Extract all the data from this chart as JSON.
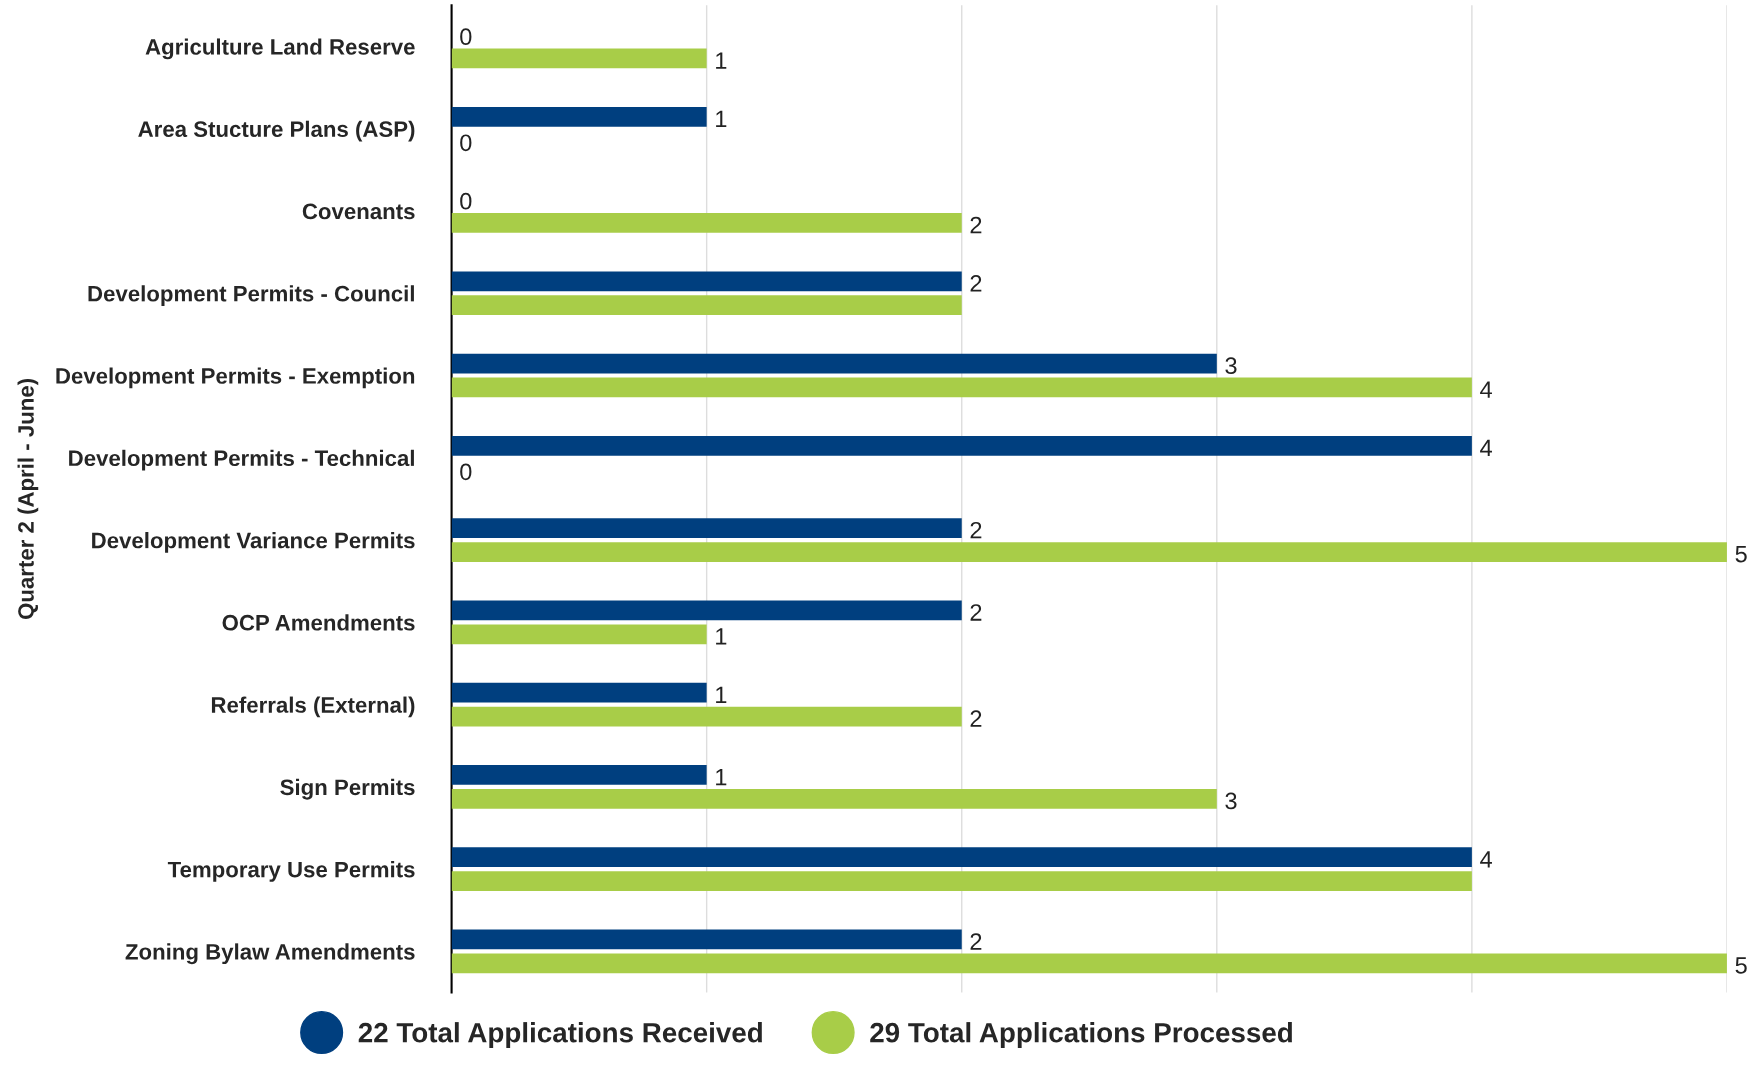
{
  "chart_data": {
    "type": "bar",
    "orientation": "horizontal",
    "ylabel": "Quarter 2 (April - June)",
    "categories": [
      "Agriculture Land Reserve",
      "Area Stucture Plans (ASP)",
      "Covenants",
      "Development Permits - Council",
      "Development Permits - Exemption",
      "Development Permits - Technical",
      "Development Variance Permits",
      "OCP Amendments",
      "Referrals (External)",
      "Sign Permits",
      "Temporary Use Permits",
      "Zoning Bylaw Amendments"
    ],
    "series": [
      {
        "name": "22 Total Applications Received",
        "color": "#003f7f",
        "values": [
          0,
          1,
          0,
          2,
          3,
          4,
          2,
          2,
          1,
          1,
          4,
          2
        ],
        "value_labels": [
          "0",
          "1",
          "0",
          "2",
          "3",
          "4",
          "2",
          "2",
          "1",
          "1",
          "4",
          "2"
        ]
      },
      {
        "name": "29 Total Applications Processed",
        "color": "#a8cd48",
        "values": [
          1,
          0,
          2,
          2,
          4,
          0,
          5,
          1,
          2,
          3,
          4,
          5
        ],
        "value_labels": [
          "1",
          "0",
          "2",
          null,
          "4",
          "0",
          "5",
          "1",
          "2",
          "3",
          null,
          "5"
        ]
      }
    ],
    "xlim": [
      0,
      5
    ],
    "xticks": [
      {
        "value": 0,
        "label": null
      },
      {
        "value": 1,
        "label": null
      },
      {
        "value": 2,
        "label": null
      },
      {
        "value": 3,
        "label": null
      },
      {
        "value": 4,
        "label": null
      },
      {
        "value": 5,
        "label": null
      }
    ],
    "tick_labels": "y",
    "grid": "x",
    "legend": "bottom"
  }
}
